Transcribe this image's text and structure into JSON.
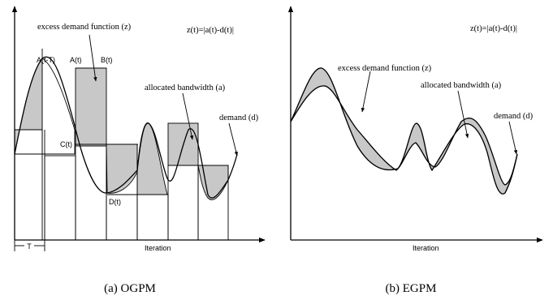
{
  "panel_a": {
    "excess_label": "excess demand function (z)",
    "formula": "z(t)=|a(t)-d(t)|",
    "label_a_t_minus_T": "A(t-T)",
    "label_a_t": "A(t)",
    "label_b_t": "B(t)",
    "label_c_t": "C(t)",
    "label_d_t": "D(t)",
    "allocated_label": "allocated bandwidth (a)",
    "demand_label": "demand (d)",
    "period_label": "T",
    "x_axis_label": "Iteration",
    "caption": "(a)  OGPM"
  },
  "panel_b": {
    "formula": "z(t)=|a(t)-d(t)|",
    "excess_label": "excess demand function (z)",
    "allocated_label": "allocated bandwidth (a)",
    "demand_label": "demand (d)",
    "x_axis_label": "Iteration",
    "caption": "(b)  EGPM"
  }
}
